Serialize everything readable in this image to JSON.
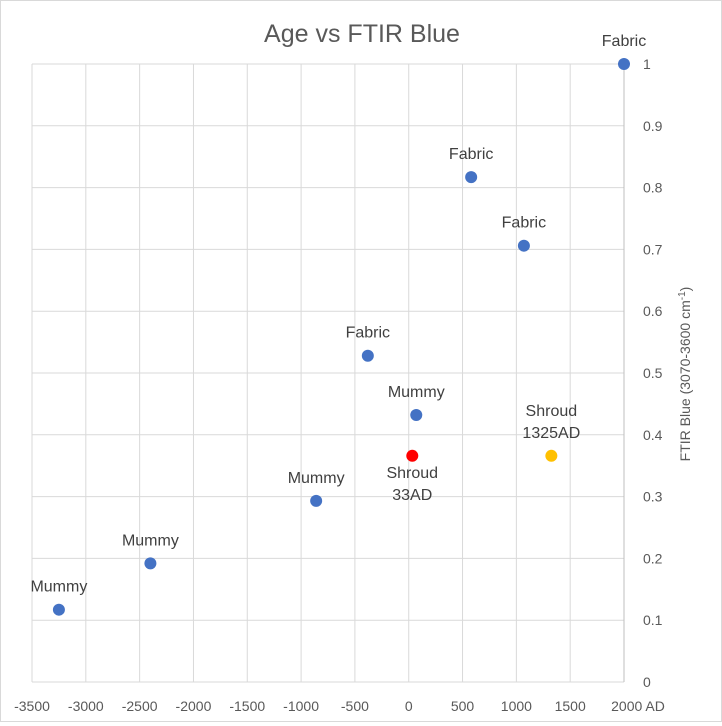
{
  "chart_data": {
    "type": "scatter",
    "title": "Age vs FTIR Blue",
    "xlabel": "",
    "ylabel": "FTIR Blue (3070-3600 cm",
    "ylabel_sup": "-1",
    "ylabel_suffix": ")",
    "xlim": [
      -3500,
      2000
    ],
    "ylim": [
      0,
      1
    ],
    "x_ticks": [
      -3500,
      -3000,
      -2500,
      -2000,
      -1500,
      -1000,
      -500,
      0,
      500,
      1000,
      1500,
      2000
    ],
    "x_tick_labels": [
      "-3500",
      "-3000",
      "-2500",
      "-2000",
      "-1500",
      "-1000",
      "-500",
      "0",
      "500",
      "1000",
      "1500",
      "2000 AD"
    ],
    "y_ticks": [
      0,
      0.1,
      0.2,
      0.3,
      0.4,
      0.5,
      0.6,
      0.7,
      0.8,
      0.9,
      1
    ],
    "y_tick_labels": [
      "0",
      "0.1",
      "0.2",
      "0.3",
      "0.4",
      "0.5",
      "0.6",
      "0.7",
      "0.8",
      "0.9",
      "1"
    ],
    "grid": true,
    "y_axis_side": "right",
    "colors": {
      "default": "#4472c4",
      "shroud33": "#ff0000",
      "shroud1325": "#ffc000"
    },
    "points": [
      {
        "x": -3250,
        "y": 0.117,
        "label": [
          "Mummy"
        ],
        "color": "#4472c4",
        "label_pos": "above"
      },
      {
        "x": -2400,
        "y": 0.192,
        "label": [
          "Mummy"
        ],
        "color": "#4472c4",
        "label_pos": "above"
      },
      {
        "x": -860,
        "y": 0.293,
        "label": [
          "Mummy"
        ],
        "color": "#4472c4",
        "label_pos": "above"
      },
      {
        "x": 70,
        "y": 0.432,
        "label": [
          "Mummy"
        ],
        "color": "#4472c4",
        "label_pos": "above"
      },
      {
        "x": 33,
        "y": 0.366,
        "label": [
          "Shroud",
          "33AD"
        ],
        "color": "#ff0000",
        "label_pos": "below"
      },
      {
        "x": -380,
        "y": 0.528,
        "label": [
          "Fabric"
        ],
        "color": "#4472c4",
        "label_pos": "above"
      },
      {
        "x": 1325,
        "y": 0.366,
        "label": [
          "Shroud",
          "1325AD"
        ],
        "color": "#ffc000",
        "label_pos": "above"
      },
      {
        "x": 1070,
        "y": 0.706,
        "label": [
          "Fabric"
        ],
        "color": "#4472c4",
        "label_pos": "above"
      },
      {
        "x": 580,
        "y": 0.817,
        "label": [
          "Fabric"
        ],
        "color": "#4472c4",
        "label_pos": "above"
      },
      {
        "x": 2000,
        "y": 1.0,
        "label": [
          "Fabric"
        ],
        "color": "#4472c4",
        "label_pos": "above"
      }
    ]
  }
}
